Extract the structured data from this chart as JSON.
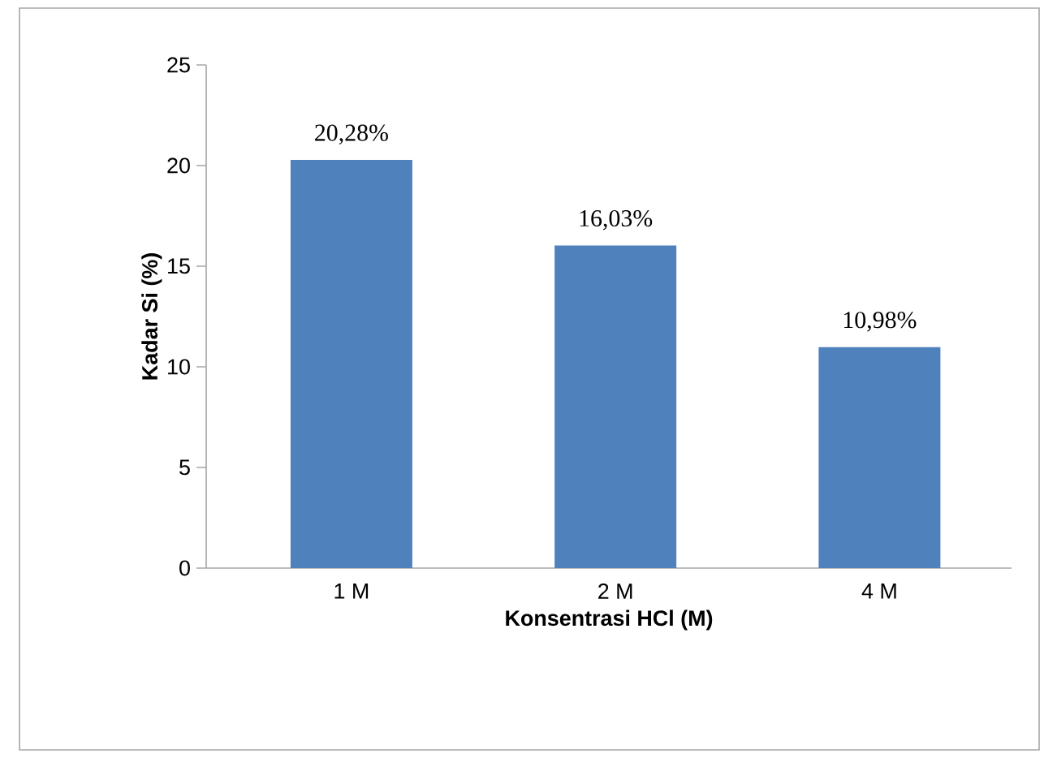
{
  "chart_data": {
    "type": "bar",
    "xlabel": "Konsentrasi HCl (M)",
    "ylabel": "Kadar Si (%)",
    "categories": [
      "1 M",
      "2 M",
      "4 M"
    ],
    "values": [
      20.28,
      16.03,
      10.98
    ],
    "value_labels": [
      "20,28%",
      "16,03%",
      "10,98%"
    ],
    "color": "#4f81bd",
    "ylim": [
      0,
      25
    ],
    "yticks": [
      0,
      5,
      10,
      15,
      20,
      25
    ],
    "grid": false
  }
}
